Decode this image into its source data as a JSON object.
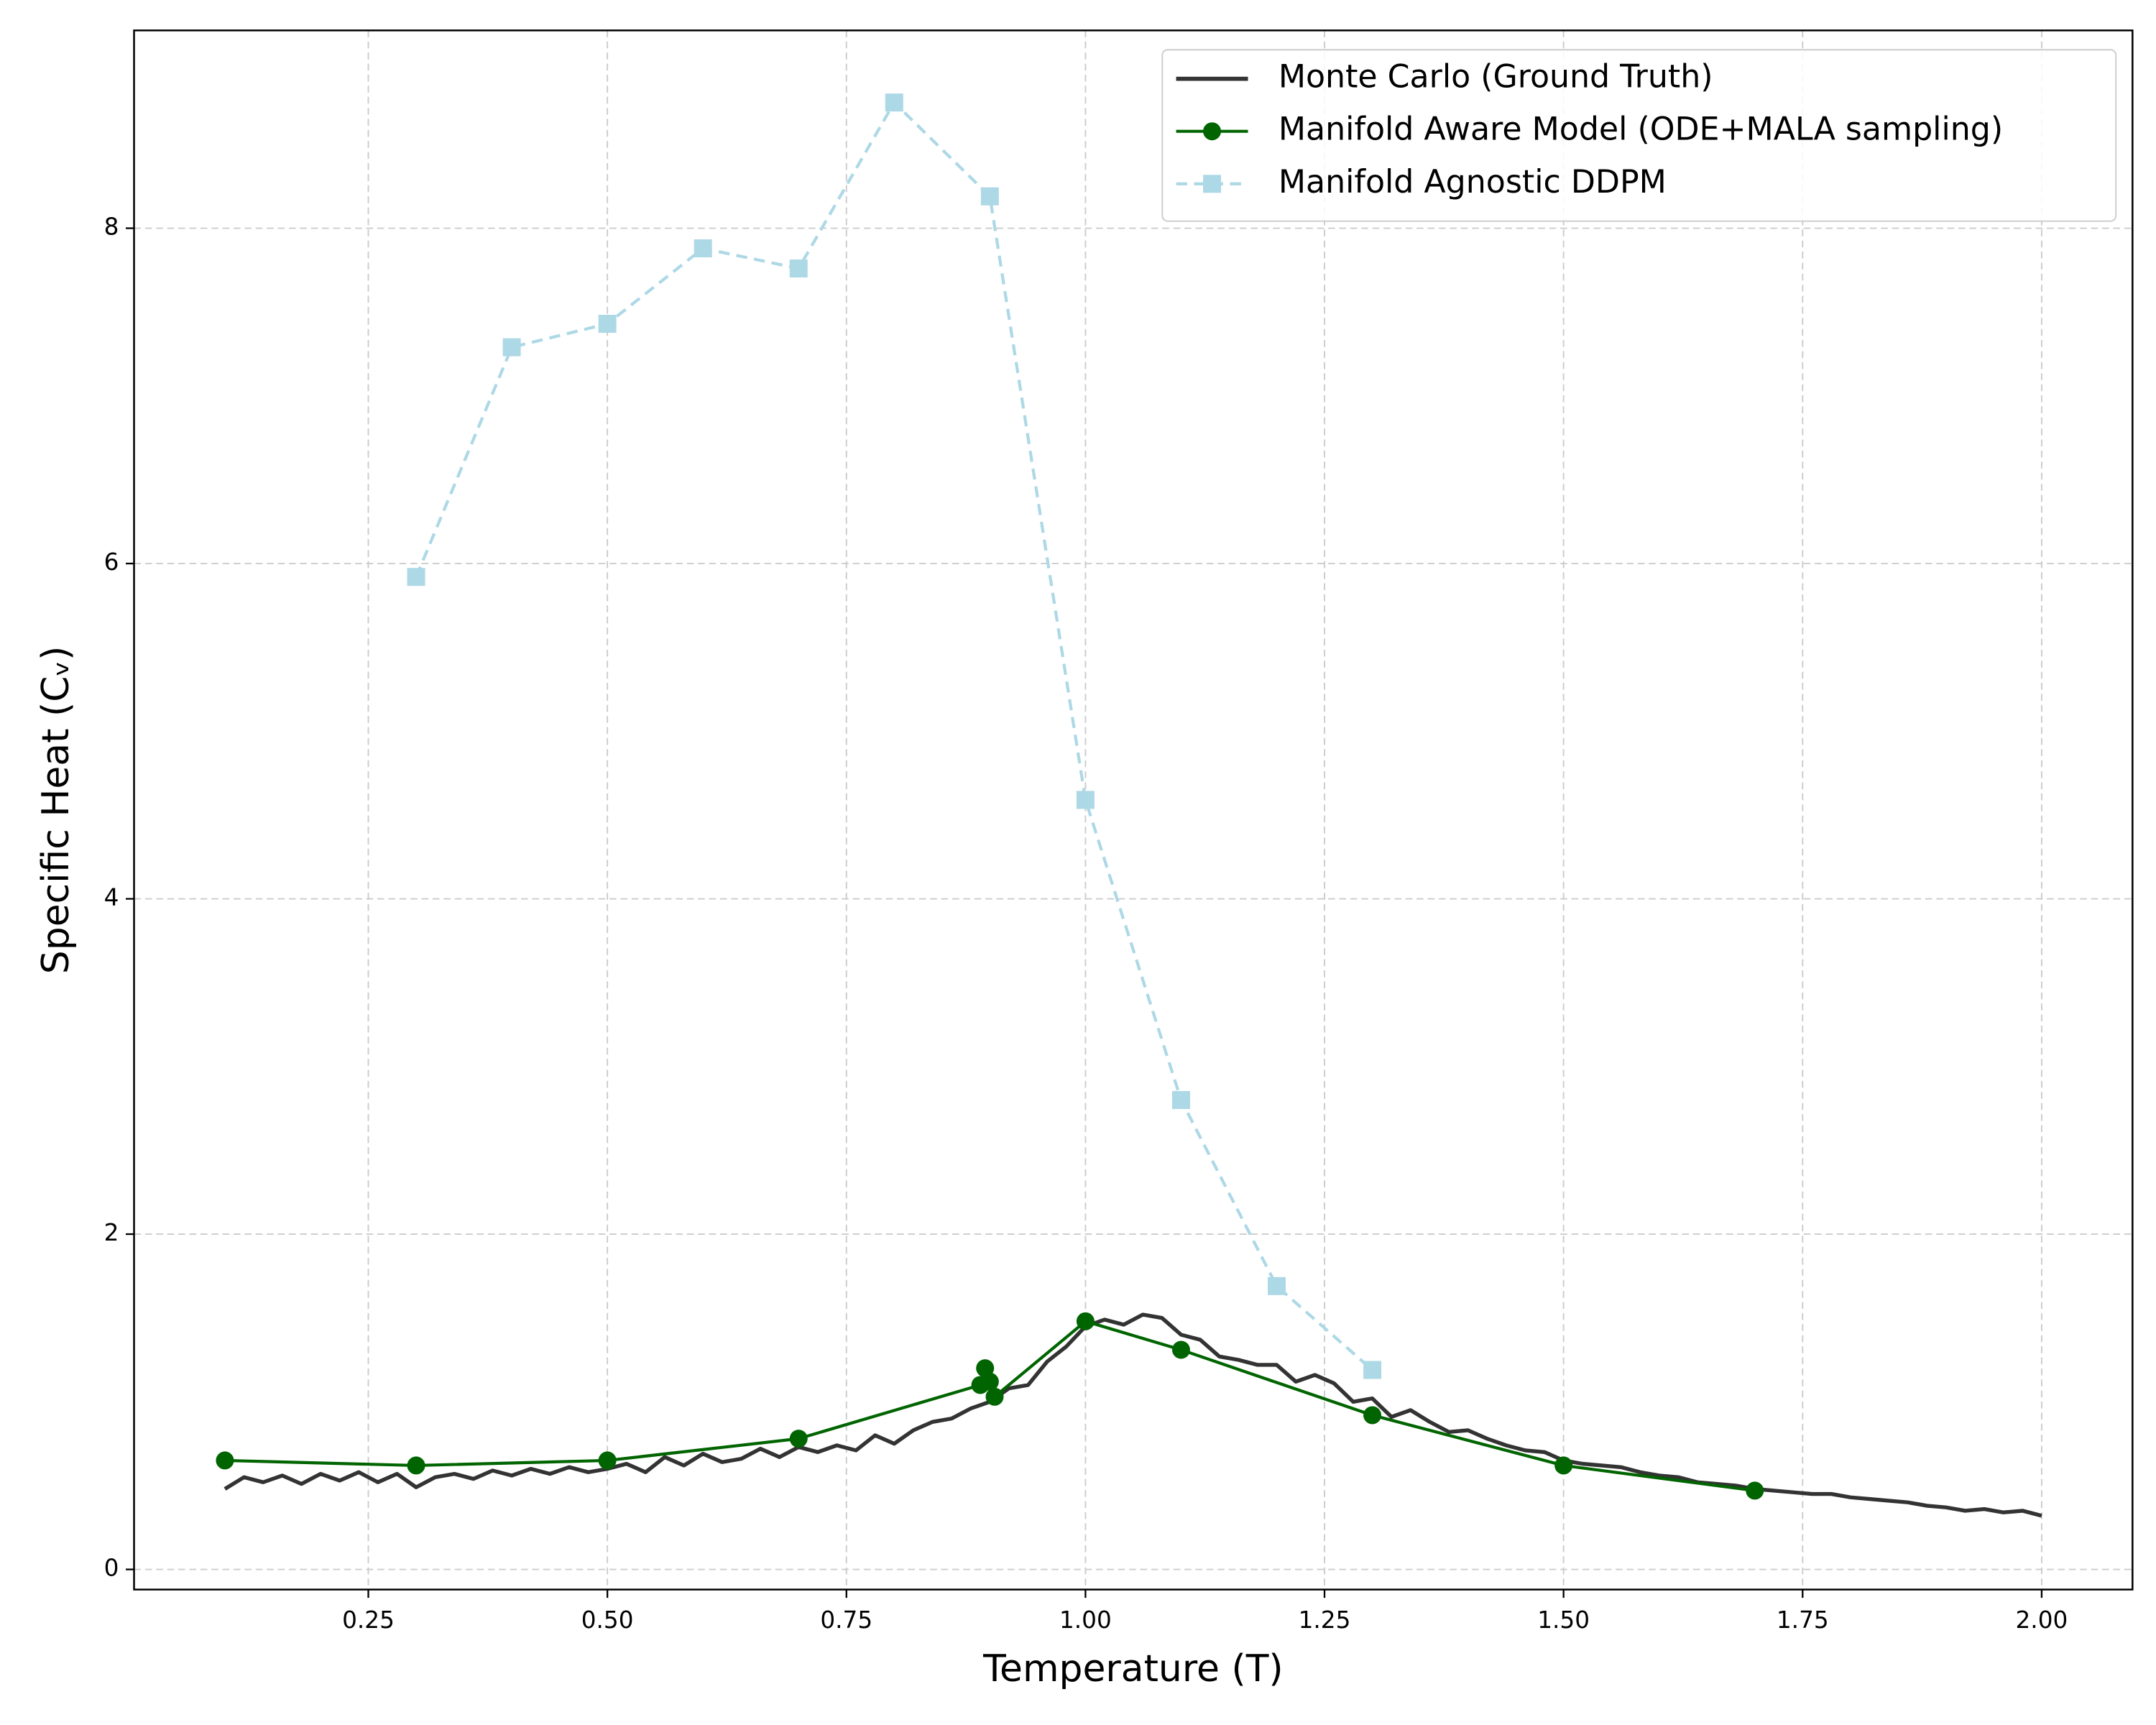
{
  "chart_data": {
    "type": "line",
    "xlabel": "Temperature (T)",
    "ylabel": "Specific Heat (Cᵥ)",
    "xlim": [
      0.005,
      2.095
    ],
    "ylim": [
      -0.12,
      9.18
    ],
    "xticks": [
      0.25,
      {
        "value": 0.5,
        "label": "0.50"
      },
      0.75,
      {
        "value": 1.0,
        "label": "1.00"
      },
      1.25,
      {
        "value": 1.5,
        "label": "1.50"
      },
      1.75,
      {
        "value": 2.0,
        "label": "2.00"
      }
    ],
    "yticks": [
      0,
      2,
      4,
      6,
      8
    ],
    "grid": true,
    "legend": "upper right",
    "series": [
      {
        "name": "Monte Carlo (Ground Truth)",
        "color": "#333333",
        "style": "solid",
        "marker": "none",
        "x": [
          0.1,
          0.12,
          0.14,
          0.16,
          0.18,
          0.2,
          0.22,
          0.24,
          0.26,
          0.28,
          0.3,
          0.32,
          0.34,
          0.36,
          0.38,
          0.4,
          0.42,
          0.44,
          0.46,
          0.48,
          0.5,
          0.52,
          0.54,
          0.56,
          0.58,
          0.6,
          0.62,
          0.64,
          0.66,
          0.68,
          0.7,
          0.72,
          0.74,
          0.76,
          0.78,
          0.8,
          0.82,
          0.84,
          0.86,
          0.88,
          0.9,
          0.92,
          0.94,
          0.96,
          0.98,
          1.0,
          1.02,
          1.04,
          1.06,
          1.08,
          1.1,
          1.12,
          1.14,
          1.16,
          1.18,
          1.2,
          1.22,
          1.24,
          1.26,
          1.28,
          1.3,
          1.32,
          1.34,
          1.36,
          1.38,
          1.4,
          1.42,
          1.44,
          1.46,
          1.48,
          1.5,
          1.52,
          1.54,
          1.56,
          1.58,
          1.6,
          1.62,
          1.64,
          1.66,
          1.68,
          1.7,
          1.72,
          1.74,
          1.76,
          1.78,
          1.8,
          1.82,
          1.84,
          1.86,
          1.88,
          1.9,
          1.92,
          1.94,
          1.96,
          1.98,
          2.0
        ],
        "values": [
          0.48,
          0.55,
          0.52,
          0.56,
          0.51,
          0.57,
          0.53,
          0.58,
          0.52,
          0.57,
          0.49,
          0.55,
          0.57,
          0.54,
          0.59,
          0.56,
          0.6,
          0.57,
          0.61,
          0.58,
          0.6,
          0.63,
          0.58,
          0.67,
          0.62,
          0.69,
          0.64,
          0.66,
          0.72,
          0.67,
          0.73,
          0.7,
          0.74,
          0.71,
          0.8,
          0.75,
          0.83,
          0.88,
          0.9,
          0.96,
          1.0,
          1.08,
          1.1,
          1.24,
          1.33,
          1.45,
          1.49,
          1.46,
          1.52,
          1.5,
          1.4,
          1.37,
          1.27,
          1.25,
          1.22,
          1.22,
          1.12,
          1.16,
          1.11,
          1.0,
          1.02,
          0.91,
          0.95,
          0.88,
          0.82,
          0.83,
          0.78,
          0.74,
          0.71,
          0.7,
          0.65,
          0.63,
          0.62,
          0.61,
          0.58,
          0.56,
          0.55,
          0.52,
          0.51,
          0.5,
          0.48,
          0.47,
          0.46,
          0.45,
          0.45,
          0.43,
          0.42,
          0.41,
          0.4,
          0.38,
          0.37,
          0.35,
          0.36,
          0.34,
          0.35,
          0.32
        ]
      },
      {
        "name": "Manifold Aware Model (ODE+MALA sampling)",
        "color": "#006400",
        "style": "solid",
        "marker": "circle",
        "x": [
          0.1,
          0.3,
          0.5,
          0.7,
          0.89,
          0.895,
          0.9,
          0.905,
          1.0,
          1.1,
          1.3,
          1.5,
          1.7
        ],
        "values": [
          0.65,
          0.62,
          0.65,
          0.78,
          1.1,
          1.2,
          1.12,
          1.03,
          1.48,
          1.31,
          0.92,
          0.62,
          0.47
        ]
      },
      {
        "name": "Manifold Agnostic DDPM",
        "color": "#add8e6",
        "style": "dashed",
        "marker": "square",
        "x": [
          0.3,
          0.4,
          0.5,
          0.6,
          0.7,
          0.8,
          0.9,
          1.0,
          1.1,
          1.2,
          1.3
        ],
        "values": [
          5.92,
          7.29,
          7.43,
          7.88,
          7.76,
          8.75,
          8.19,
          4.59,
          2.8,
          1.69,
          1.19
        ]
      }
    ]
  }
}
